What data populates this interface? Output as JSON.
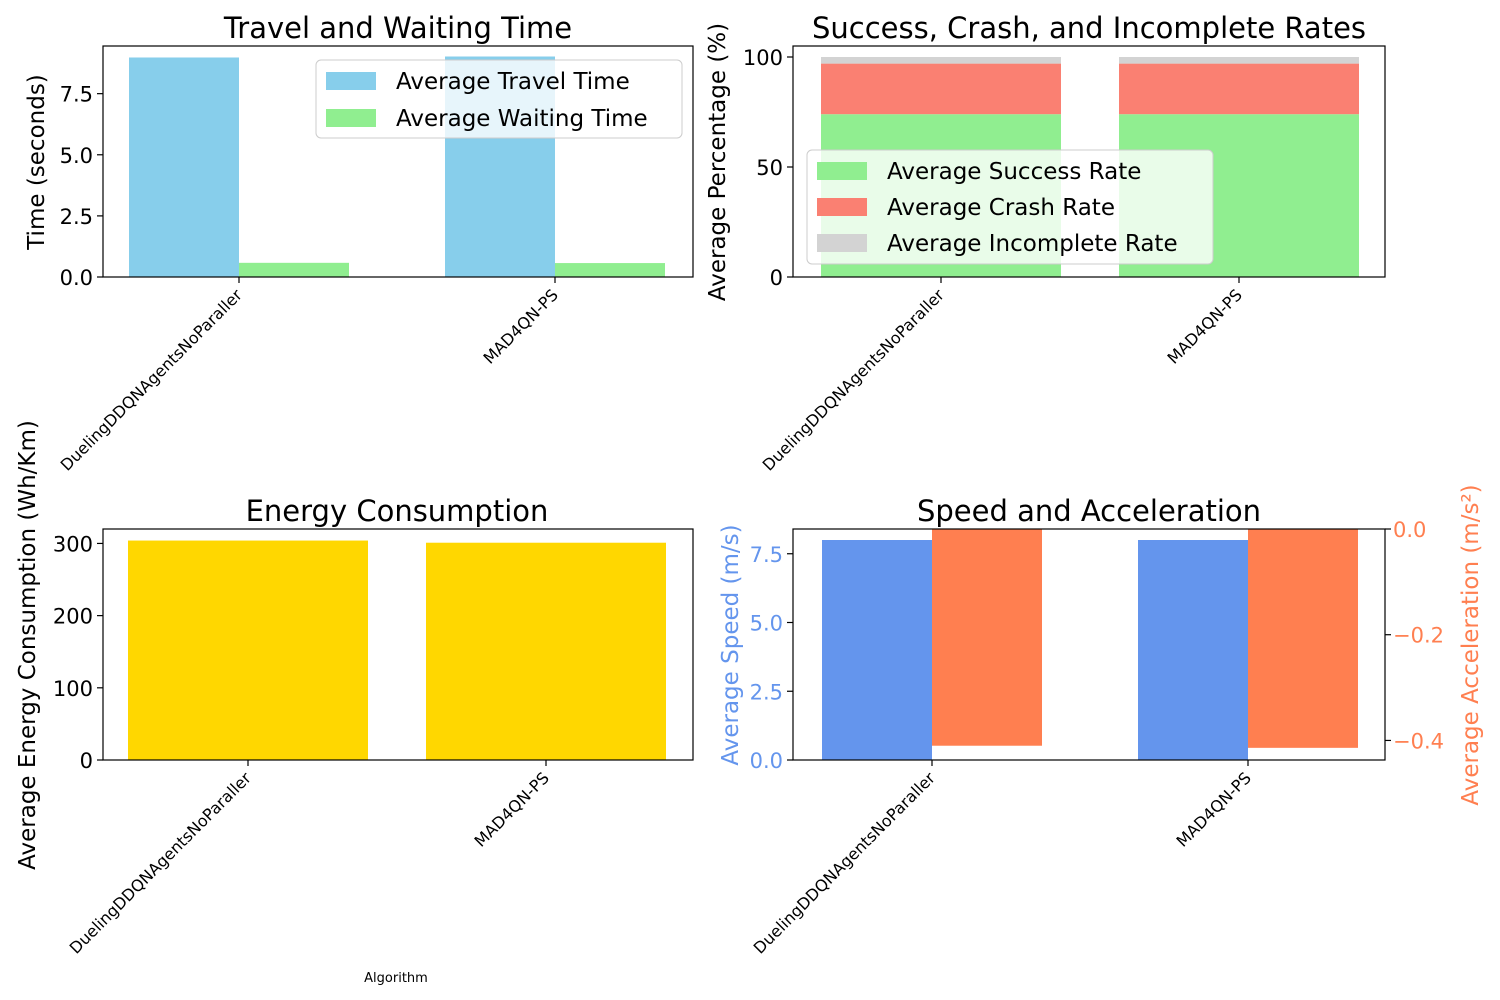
{
  "figure": {
    "footer_label": "Algorithm"
  },
  "chart_data": [
    {
      "type": "bar",
      "title": "Travel and Waiting Time",
      "ylabel": "Time (seconds)",
      "ylim": [
        0,
        9.45
      ],
      "yticks": [
        "0.0",
        "2.5",
        "5.0",
        "7.5"
      ],
      "ytick_values": [
        0,
        2.5,
        5,
        7.5
      ],
      "categories": [
        "DuelingDDQNAgentsNoParaller",
        "MAD4QN-PS"
      ],
      "series": [
        {
          "name": "Average Travel Time",
          "values": [
            8.98,
            9.02
          ],
          "color": "#87CEEB"
        },
        {
          "name": "Average Waiting Time",
          "values": [
            0.58,
            0.57
          ],
          "color": "#90EE90"
        }
      ],
      "legend_position": "upper right"
    },
    {
      "type": "bar",
      "stacked": true,
      "title": "Success, Crash, and Incomplete Rates",
      "ylabel": "Average Percentage (%)",
      "ylim": [
        0,
        105
      ],
      "yticks": [
        "0",
        "50",
        "100"
      ],
      "ytick_values": [
        0,
        50,
        100
      ],
      "categories": [
        "DuelingDDQNAgentsNoParaller",
        "MAD4QN-PS"
      ],
      "series": [
        {
          "name": "Average Success Rate",
          "values": [
            74,
            74
          ],
          "color": "#90EE90"
        },
        {
          "name": "Average Crash Rate",
          "values": [
            23,
            23
          ],
          "color": "#FA8072"
        },
        {
          "name": "Average Incomplete Rate",
          "values": [
            3,
            3
          ],
          "color": "#D3D3D3"
        }
      ],
      "legend_position": "center left"
    },
    {
      "type": "bar",
      "title": "Energy Consumption",
      "ylabel": "Average Energy Consumption (Wh/Km)",
      "ylim": [
        0,
        320
      ],
      "yticks": [
        "0",
        "100",
        "200",
        "300"
      ],
      "ytick_values": [
        0,
        100,
        200,
        300
      ],
      "categories": [
        "DuelingDDQNAgentsNoParaller",
        "MAD4QN-PS"
      ],
      "series": [
        {
          "values": [
            304,
            301
          ],
          "color": "#FFD700"
        }
      ]
    },
    {
      "type": "bar",
      "title": "Speed and Acceleration",
      "ylabel": "Average Speed (m/s)",
      "ylabel_color": "#6495ED",
      "y2label": "Average Acceleration (m/s²)",
      "y2label_color": "#FF7F50",
      "ylim": [
        0,
        8.4
      ],
      "yticks": [
        "0.0",
        "2.5",
        "5.0",
        "7.5"
      ],
      "ytick_values": [
        0,
        2.5,
        5,
        7.5
      ],
      "y2lim": [
        -0.437,
        0.0
      ],
      "y2ticks": [
        "0.0",
        "−0.2",
        "−0.4"
      ],
      "y2tick_values": [
        0,
        -0.2,
        -0.4
      ],
      "categories": [
        "DuelingDDQNAgentsNoParaller",
        "MAD4QN-PS"
      ],
      "series": [
        {
          "name": "Average Speed",
          "axis": "left",
          "values": [
            8.0,
            8.0
          ],
          "color": "#6495ED"
        },
        {
          "name": "Average Acceleration",
          "axis": "right",
          "values": [
            -0.41,
            -0.414
          ],
          "color": "#FF7F50"
        }
      ]
    }
  ]
}
